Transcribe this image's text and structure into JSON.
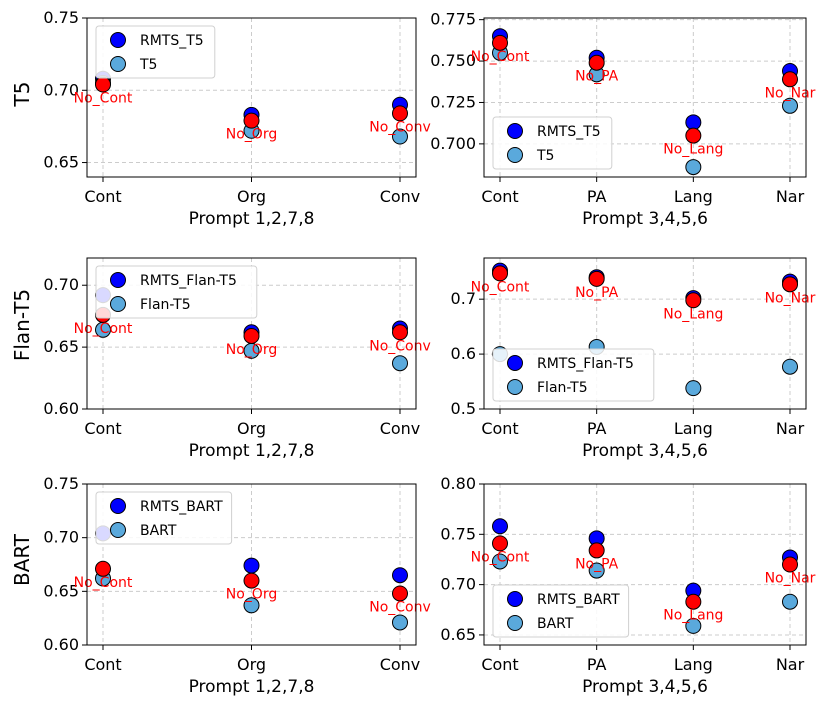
{
  "figure": {
    "row_labels": [
      "T5",
      "Flan-T5",
      "BART"
    ]
  },
  "colors": {
    "rmts": "#0000ff",
    "base": "#5aa9dc",
    "ablation": "#ff0000",
    "annotation": "#ff0000",
    "grid": "#cccccc"
  },
  "chart_data": [
    {
      "type": "scatter",
      "row": 0,
      "col": 0,
      "xlabel": "Prompt 1,2,7,8",
      "categories": [
        "Cont",
        "Org",
        "Conv"
      ],
      "ylim": [
        0.64,
        0.75
      ],
      "yticks": [
        0.65,
        0.7,
        0.75
      ],
      "ytick_labels": [
        "0.65",
        "0.70",
        "0.75"
      ],
      "legend": {
        "loc": "upper-left",
        "entries": [
          "RMTS_T5",
          "T5"
        ]
      },
      "series": [
        {
          "name": "RMTS_T5",
          "role": "rmts",
          "values": [
            0.708,
            0.683,
            0.69
          ]
        },
        {
          "name": "T5",
          "role": "base",
          "values": [
            0.705,
            0.672,
            0.668
          ]
        },
        {
          "name": "ablation",
          "role": "ablation",
          "values": [
            0.704,
            0.679,
            0.684
          ]
        }
      ],
      "annotations": [
        "No_Cont",
        "No_Org",
        "No_Conv"
      ]
    },
    {
      "type": "scatter",
      "row": 0,
      "col": 1,
      "xlabel": "Prompt 3,4,5,6",
      "categories": [
        "Cont",
        "PA",
        "Lang",
        "Nar"
      ],
      "ylim": [
        0.68,
        0.776
      ],
      "yticks": [
        0.7,
        0.725,
        0.75,
        0.775
      ],
      "ytick_labels": [
        "0.700",
        "0.725",
        "0.750",
        "0.775"
      ],
      "legend": {
        "loc": "lower-left",
        "entries": [
          "RMTS_T5",
          "T5"
        ]
      },
      "series": [
        {
          "name": "RMTS_T5",
          "role": "rmts",
          "values": [
            0.765,
            0.752,
            0.713,
            0.744
          ]
        },
        {
          "name": "T5",
          "role": "base",
          "values": [
            0.755,
            0.742,
            0.686,
            0.723
          ]
        },
        {
          "name": "ablation",
          "role": "ablation",
          "values": [
            0.761,
            0.749,
            0.705,
            0.739
          ]
        }
      ],
      "annotations": [
        "No_Cont",
        "No_PA",
        "No_Lang",
        "No_Nar"
      ]
    },
    {
      "type": "scatter",
      "row": 1,
      "col": 0,
      "xlabel": "Prompt 1,2,7,8",
      "categories": [
        "Cont",
        "Org",
        "Conv"
      ],
      "ylim": [
        0.6,
        0.722
      ],
      "yticks": [
        0.6,
        0.65,
        0.7
      ],
      "ytick_labels": [
        "0.60",
        "0.65",
        "0.70"
      ],
      "legend": {
        "loc": "upper-left",
        "entries": [
          "RMTS_Flan-T5",
          "Flan-T5"
        ]
      },
      "series": [
        {
          "name": "RMTS_Flan-T5",
          "role": "rmts",
          "values": [
            0.692,
            0.662,
            0.665
          ]
        },
        {
          "name": "Flan-T5",
          "role": "base",
          "values": [
            0.664,
            0.647,
            0.637
          ]
        },
        {
          "name": "ablation",
          "role": "ablation",
          "values": [
            0.676,
            0.659,
            0.662
          ]
        }
      ],
      "annotations": [
        "No_Cont",
        "No_Org",
        "No_Conv"
      ]
    },
    {
      "type": "scatter",
      "row": 1,
      "col": 1,
      "xlabel": "Prompt 3,4,5,6",
      "categories": [
        "Cont",
        "PA",
        "Lang",
        "Nar"
      ],
      "ylim": [
        0.5,
        0.775
      ],
      "yticks": [
        0.5,
        0.6,
        0.7
      ],
      "ytick_labels": [
        "0.5",
        "0.6",
        "0.7"
      ],
      "legend": {
        "loc": "lower-left",
        "entries": [
          "RMTS_Flan-T5",
          "Flan-T5"
        ]
      },
      "series": [
        {
          "name": "RMTS_Flan-T5",
          "role": "rmts",
          "values": [
            0.752,
            0.74,
            0.702,
            0.732
          ]
        },
        {
          "name": "Flan-T5",
          "role": "base",
          "values": [
            0.6,
            0.613,
            0.538,
            0.577
          ]
        },
        {
          "name": "ablation",
          "role": "ablation",
          "values": [
            0.747,
            0.737,
            0.698,
            0.727
          ]
        }
      ],
      "annotations": [
        "No_Cont",
        "No_PA",
        "No_Lang",
        "No_Nar"
      ]
    },
    {
      "type": "scatter",
      "row": 2,
      "col": 0,
      "xlabel": "Prompt 1,2,7,8",
      "categories": [
        "Cont",
        "Org",
        "Conv"
      ],
      "ylim": [
        0.6,
        0.75
      ],
      "yticks": [
        0.6,
        0.65,
        0.7,
        0.75
      ],
      "ytick_labels": [
        "0.60",
        "0.65",
        "0.70",
        "0.75"
      ],
      "legend": {
        "loc": "upper-left",
        "entries": [
          "RMTS_BART",
          "BART"
        ]
      },
      "series": [
        {
          "name": "RMTS_BART",
          "role": "rmts",
          "values": [
            0.704,
            0.674,
            0.665
          ]
        },
        {
          "name": "BART",
          "role": "base",
          "values": [
            0.662,
            0.637,
            0.621
          ]
        },
        {
          "name": "ablation",
          "role": "ablation",
          "values": [
            0.671,
            0.66,
            0.648
          ]
        }
      ],
      "annotations": [
        "No_Cont",
        "No_Org",
        "No_Conv"
      ]
    },
    {
      "type": "scatter",
      "row": 2,
      "col": 1,
      "xlabel": "Prompt 3,4,5,6",
      "categories": [
        "Cont",
        "PA",
        "Lang",
        "Nar"
      ],
      "ylim": [
        0.64,
        0.8
      ],
      "yticks": [
        0.65,
        0.7,
        0.75,
        0.8
      ],
      "ytick_labels": [
        "0.65",
        "0.70",
        "0.75",
        "0.80"
      ],
      "legend": {
        "loc": "lower-left",
        "entries": [
          "RMTS_BART",
          "BART"
        ]
      },
      "series": [
        {
          "name": "RMTS_BART",
          "role": "rmts",
          "values": [
            0.758,
            0.746,
            0.694,
            0.727
          ]
        },
        {
          "name": "BART",
          "role": "base",
          "values": [
            0.723,
            0.714,
            0.659,
            0.683
          ]
        },
        {
          "name": "ablation",
          "role": "ablation",
          "values": [
            0.741,
            0.734,
            0.683,
            0.72
          ]
        }
      ],
      "annotations": [
        "No_Cont",
        "No_PA",
        "No_Lang",
        "No_Nar"
      ]
    }
  ]
}
